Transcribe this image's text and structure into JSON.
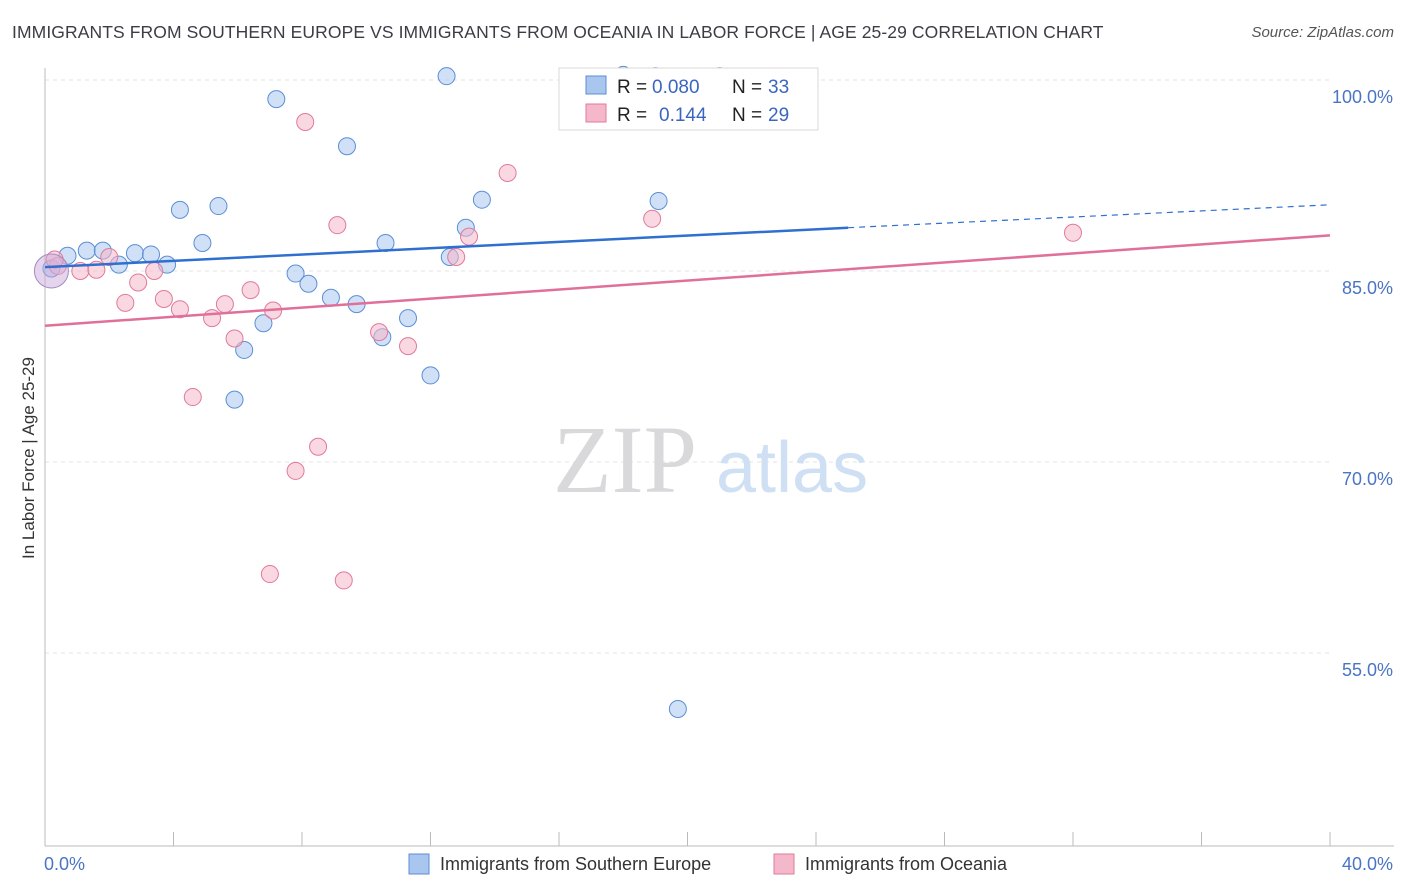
{
  "header": {
    "title": "IMMIGRANTS FROM SOUTHERN EUROPE VS IMMIGRANTS FROM OCEANIA IN LABOR FORCE | AGE 25-29 CORRELATION CHART",
    "source": "Source: ZipAtlas.com"
  },
  "watermark": {
    "zip": "ZIP",
    "atlas": "atlas"
  },
  "legend": {
    "r_label": "R =",
    "n_label": "N =",
    "entries": [
      {
        "r": "0.080",
        "n": "33",
        "color": "#a9c6ef"
      },
      {
        "r": "0.144",
        "n": "29",
        "color": "#f5b8cb"
      }
    ]
  },
  "chart_data": {
    "type": "scatter",
    "ylabel": "In Labor Force | Age 25-29",
    "xlim": [
      0,
      40
    ],
    "ylim": [
      42,
      102
    ],
    "x_tick_labels": [
      {
        "value": 0,
        "label": "0.0%"
      },
      {
        "value": 40,
        "label": "40.0%"
      }
    ],
    "y_tick_labels": [
      {
        "value": 100,
        "label": "100.0%"
      },
      {
        "value": 85,
        "label": "85.0%"
      },
      {
        "value": 70,
        "label": "70.0%"
      },
      {
        "value": 55,
        "label": "55.0%"
      }
    ],
    "series": [
      {
        "name": "Immigrants from Southern Europe",
        "color": "#a9c6ef",
        "stroke": "#5b8fd6",
        "line_color": "#2e6fcf",
        "trend": {
          "x0": 0,
          "y0": 85.3,
          "x1": 25,
          "y1": 88.4,
          "dash_x1": 40,
          "dash_y1": 90.2
        },
        "points": [
          [
            0.2,
            85.2
          ],
          [
            0.7,
            86.2
          ],
          [
            1.3,
            86.6
          ],
          [
            1.8,
            86.6
          ],
          [
            2.3,
            85.5
          ],
          [
            2.8,
            86.4
          ],
          [
            3.3,
            86.3
          ],
          [
            3.8,
            85.5
          ],
          [
            4.2,
            89.8
          ],
          [
            4.9,
            87.2
          ],
          [
            5.4,
            90.1
          ],
          [
            6.2,
            78.8
          ],
          [
            5.9,
            74.9
          ],
          [
            6.8,
            80.9
          ],
          [
            7.2,
            98.5
          ],
          [
            7.8,
            84.8
          ],
          [
            8.2,
            84.0
          ],
          [
            8.9,
            82.9
          ],
          [
            9.4,
            94.8
          ],
          [
            9.7,
            82.4
          ],
          [
            10.5,
            79.8
          ],
          [
            10.6,
            87.2
          ],
          [
            11.3,
            81.3
          ],
          [
            12.0,
            76.8
          ],
          [
            12.5,
            100.3
          ],
          [
            12.6,
            86.1
          ],
          [
            13.1,
            88.4
          ],
          [
            13.6,
            90.6
          ],
          [
            18.0,
            100.4
          ],
          [
            19.0,
            100.3
          ],
          [
            19.1,
            90.5
          ],
          [
            21.0,
            100.3
          ],
          [
            19.7,
            50.6
          ]
        ]
      },
      {
        "name": "Immigrants from Oceania",
        "color": "#f5b8cb",
        "stroke": "#e07a9c",
        "line_color": "#e0709a",
        "trend": {
          "x0": 0,
          "y0": 80.7,
          "x1": 40,
          "y1": 87.8
        },
        "points": [
          [
            0.4,
            85.4
          ],
          [
            1.1,
            85.0
          ],
          [
            1.6,
            85.1
          ],
          [
            2.0,
            86.1
          ],
          [
            2.5,
            82.5
          ],
          [
            2.9,
            84.1
          ],
          [
            3.4,
            85.0
          ],
          [
            3.7,
            82.8
          ],
          [
            4.2,
            82.0
          ],
          [
            4.6,
            75.1
          ],
          [
            5.2,
            81.3
          ],
          [
            5.6,
            82.4
          ],
          [
            5.9,
            79.7
          ],
          [
            6.4,
            83.5
          ],
          [
            7.1,
            81.9
          ],
          [
            7.0,
            61.2
          ],
          [
            7.8,
            69.3
          ],
          [
            8.1,
            96.7
          ],
          [
            8.5,
            71.2
          ],
          [
            9.1,
            88.6
          ],
          [
            9.3,
            60.7
          ],
          [
            10.4,
            80.2
          ],
          [
            11.3,
            79.1
          ],
          [
            12.8,
            86.1
          ],
          [
            13.2,
            87.7
          ],
          [
            14.4,
            92.7
          ],
          [
            18.9,
            89.1
          ],
          [
            32.0,
            88.0
          ],
          [
            0.3,
            85.9
          ]
        ]
      }
    ]
  }
}
